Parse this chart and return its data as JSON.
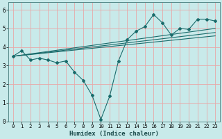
{
  "xlabel": "Humidex (Indice chaleur)",
  "background_color": "#c8eaea",
  "grid_color": "#e8a8a8",
  "line_color": "#1a6b6b",
  "xlim": [
    -0.5,
    23.5
  ],
  "ylim": [
    0,
    6.4
  ],
  "yticks": [
    0,
    1,
    2,
    3,
    4,
    5,
    6
  ],
  "xticks": [
    0,
    1,
    2,
    3,
    4,
    5,
    6,
    7,
    8,
    9,
    10,
    11,
    12,
    13,
    14,
    15,
    16,
    17,
    18,
    19,
    20,
    21,
    22,
    23
  ],
  "series1": {
    "x": [
      0,
      1,
      2,
      3,
      4,
      5,
      6,
      7,
      8,
      9,
      10,
      11,
      12,
      13,
      14,
      15,
      16,
      17,
      18,
      19,
      20,
      21,
      22,
      23
    ],
    "y": [
      3.5,
      3.8,
      3.3,
      3.4,
      3.3,
      3.15,
      3.25,
      2.65,
      2.2,
      1.4,
      0.1,
      1.35,
      3.25,
      4.4,
      4.85,
      5.1,
      5.75,
      5.3,
      4.65,
      5.0,
      4.95,
      5.5,
      5.5,
      5.4
    ]
  },
  "series2": {
    "x": [
      0,
      23
    ],
    "y": [
      3.5,
      4.6
    ]
  },
  "series3": {
    "x": [
      0,
      23
    ],
    "y": [
      3.5,
      4.78
    ]
  },
  "series4": {
    "x": [
      0,
      23
    ],
    "y": [
      3.5,
      5.0
    ]
  }
}
